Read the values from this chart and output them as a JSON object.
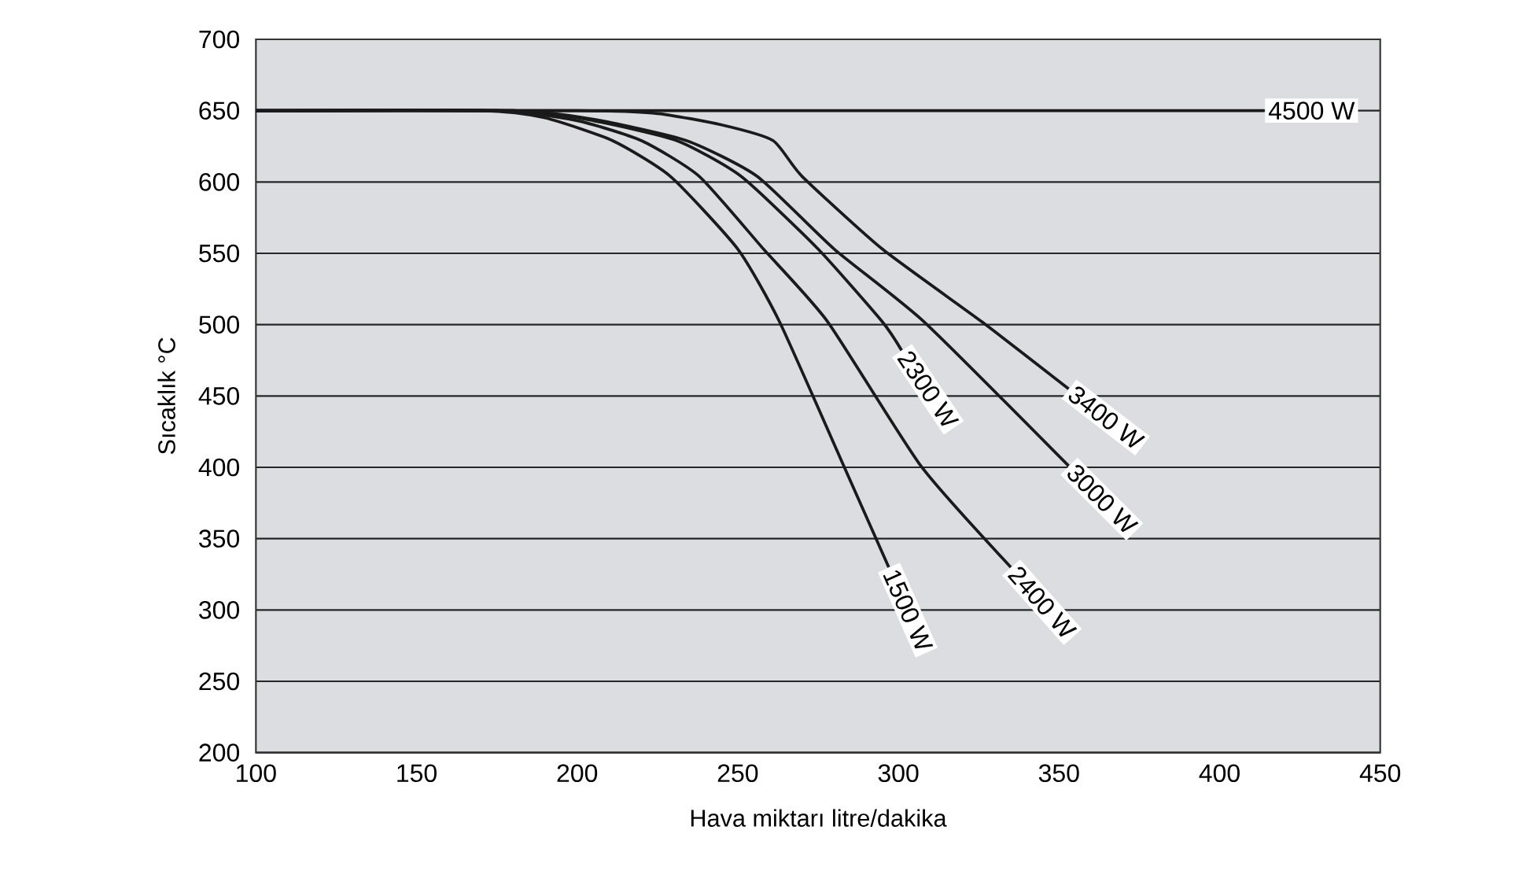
{
  "chart_data": {
    "type": "line",
    "xlabel": "Hava miktarı litre/dakika",
    "ylabel": "Sıcaklık °C",
    "xlim": [
      100,
      450
    ],
    "ylim": [
      200,
      700
    ],
    "xticks": [
      100,
      150,
      200,
      250,
      300,
      350,
      400,
      450
    ],
    "yticks": [
      200,
      250,
      300,
      350,
      400,
      450,
      500,
      550,
      600,
      650,
      700
    ],
    "grid": "y",
    "series": [
      {
        "name": "4500 W",
        "color": "#1a1a1a",
        "x": [
          100,
          414
        ],
        "values": [
          650,
          650
        ]
      },
      {
        "name": "3400 W",
        "color": "#1a1a1a",
        "x": [
          100,
          200,
          225,
          245,
          261,
          270,
          295,
          326,
          353
        ],
        "values": [
          650,
          650,
          648,
          640,
          629,
          604,
          553,
          502,
          455
        ]
      },
      {
        "name": "3000 W",
        "color": "#1a1a1a",
        "x": [
          100,
          180,
          205,
          234,
          256,
          280,
          308,
          353
        ],
        "values": [
          650,
          650,
          644,
          629,
          604,
          553,
          502,
          401
        ]
      },
      {
        "name": "2300 W",
        "color": "#1a1a1a",
        "x": [
          100,
          180,
          205,
          231,
          251,
          275,
          295,
          301
        ],
        "values": [
          650,
          650,
          643,
          629,
          604,
          553,
          502,
          482
        ]
      },
      {
        "name": "2400 W",
        "color": "#1a1a1a",
        "x": [
          100,
          175,
          200,
          220,
          238,
          258,
          278,
          307,
          335
        ],
        "values": [
          650,
          650,
          643,
          629,
          604,
          553,
          502,
          401,
          330
        ]
      },
      {
        "name": "1500 W",
        "color": "#1a1a1a",
        "x": [
          100,
          170,
          190,
          211,
          229,
          250,
          263,
          283,
          297
        ],
        "values": [
          650,
          650,
          645,
          629,
          604,
          553,
          502,
          401,
          330
        ]
      }
    ]
  }
}
